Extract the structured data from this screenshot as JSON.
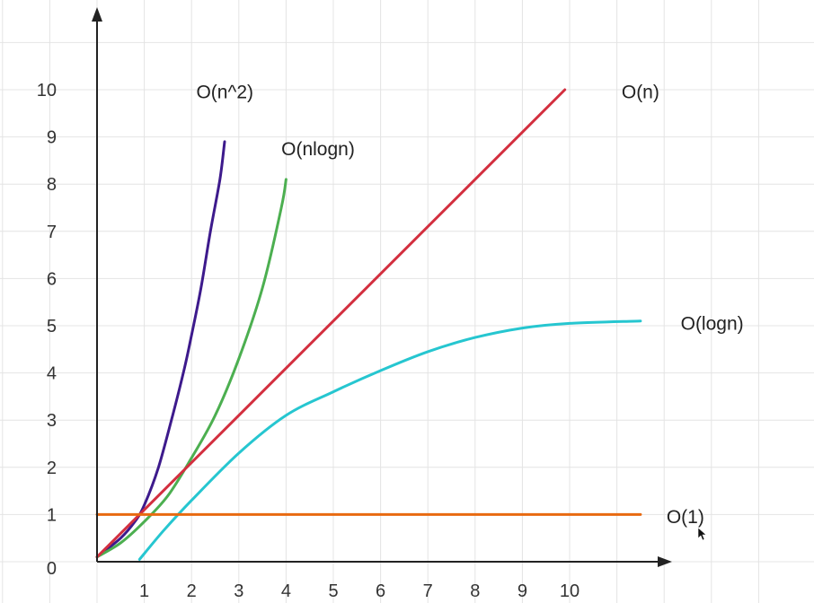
{
  "chart_data": {
    "type": "line",
    "title": "",
    "xlabel": "",
    "ylabel": "",
    "xlim": [
      0,
      11.5
    ],
    "ylim": [
      0,
      10.9
    ],
    "x_ticks": [
      "1",
      "2",
      "3",
      "4",
      "5",
      "6",
      "7",
      "8",
      "9",
      "10"
    ],
    "y_ticks": [
      "0",
      "1",
      "2",
      "3",
      "4",
      "5",
      "6",
      "7",
      "8",
      "9",
      "10"
    ],
    "grid": true,
    "series": [
      {
        "name": "O(n^2)",
        "color": "#3d1a8c",
        "points": [
          [
            0,
            0.1
          ],
          [
            0.5,
            0.5
          ],
          [
            0.8,
            0.85
          ],
          [
            1,
            1.2
          ],
          [
            1.3,
            2
          ],
          [
            1.6,
            3.1
          ],
          [
            1.85,
            4.1
          ],
          [
            2,
            4.8
          ],
          [
            2.2,
            5.8
          ],
          [
            2.4,
            7
          ],
          [
            2.6,
            8.1
          ],
          [
            2.7,
            8.9
          ]
        ]
      },
      {
        "name": "O(nlogn)",
        "color": "#4caf50",
        "points": [
          [
            0,
            0.1
          ],
          [
            0.5,
            0.4
          ],
          [
            1,
            0.85
          ],
          [
            1.5,
            1.4
          ],
          [
            2,
            2.2
          ],
          [
            2.5,
            3.1
          ],
          [
            3,
            4.3
          ],
          [
            3.5,
            5.8
          ],
          [
            3.9,
            7.5
          ],
          [
            4,
            8.1
          ]
        ]
      },
      {
        "name": "O(n)",
        "color": "#d32f3f",
        "points": [
          [
            0,
            0.1
          ],
          [
            9.9,
            10
          ]
        ]
      },
      {
        "name": "O(logn)",
        "color": "#26c6d0",
        "points": [
          [
            0.9,
            0.05
          ],
          [
            1.4,
            0.65
          ],
          [
            2,
            1.3
          ],
          [
            3,
            2.3
          ],
          [
            4,
            3.1
          ],
          [
            5,
            3.6
          ],
          [
            6,
            4.05
          ],
          [
            7,
            4.45
          ],
          [
            8,
            4.75
          ],
          [
            9,
            4.95
          ],
          [
            10,
            5.05
          ],
          [
            11.5,
            5.1
          ]
        ]
      },
      {
        "name": "O(1)",
        "color": "#e86a10",
        "points": [
          [
            0,
            1
          ],
          [
            11.5,
            1
          ]
        ]
      }
    ]
  }
}
